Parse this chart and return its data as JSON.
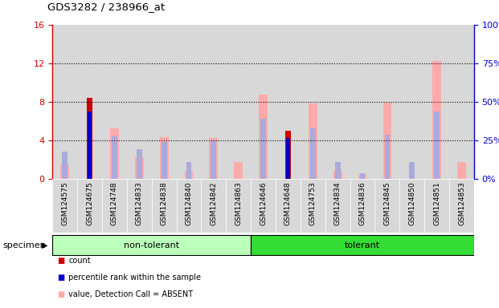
{
  "title": "GDS3282 / 238966_at",
  "samples": [
    "GSM124575",
    "GSM124675",
    "GSM124748",
    "GSM124833",
    "GSM124838",
    "GSM124840",
    "GSM124842",
    "GSM124863",
    "GSM124646",
    "GSM124648",
    "GSM124753",
    "GSM124834",
    "GSM124836",
    "GSM124845",
    "GSM124850",
    "GSM124851",
    "GSM124853"
  ],
  "non_tolerant_count": 8,
  "tolerant_count": 9,
  "count_red": [
    0,
    8.4,
    0,
    0,
    0,
    0,
    0,
    0,
    0,
    5.0,
    0,
    0,
    0,
    0,
    0,
    0,
    0
  ],
  "rank_blue": [
    0,
    7.0,
    0,
    0,
    0,
    0,
    0,
    0,
    0,
    4.2,
    0,
    0,
    0,
    0,
    0,
    0,
    0
  ],
  "value_absent_pink": [
    1.5,
    0,
    5.2,
    2.2,
    4.3,
    0.8,
    4.2,
    1.7,
    8.7,
    0,
    7.8,
    0.8,
    0.4,
    7.9,
    0,
    12.2,
    1.7
  ],
  "rank_absent_lightblue": [
    2.8,
    0,
    4.4,
    3.1,
    3.8,
    1.7,
    4.0,
    0,
    6.2,
    0,
    5.2,
    1.7,
    0.6,
    4.6,
    1.7,
    7.0,
    0
  ],
  "ylim_left": [
    0,
    16
  ],
  "ylim_right": [
    0,
    100
  ],
  "yticks_left": [
    0,
    4,
    8,
    12,
    16
  ],
  "yticks_right": [
    0,
    25,
    50,
    75,
    100
  ],
  "yticklabels_left": [
    "0",
    "4",
    "8",
    "12",
    "16"
  ],
  "yticklabels_right": [
    "0%",
    "25%",
    "50%",
    "75%",
    "100%"
  ],
  "color_red": "#cc0000",
  "color_blue": "#0000cc",
  "color_pink": "#ffaaaa",
  "color_lightblue": "#aaaadd",
  "color_green_light": "#bbffbb",
  "color_green_dark": "#33dd33",
  "specimen_label": "specimen",
  "group1_label": "non-tolerant",
  "group2_label": "tolerant"
}
